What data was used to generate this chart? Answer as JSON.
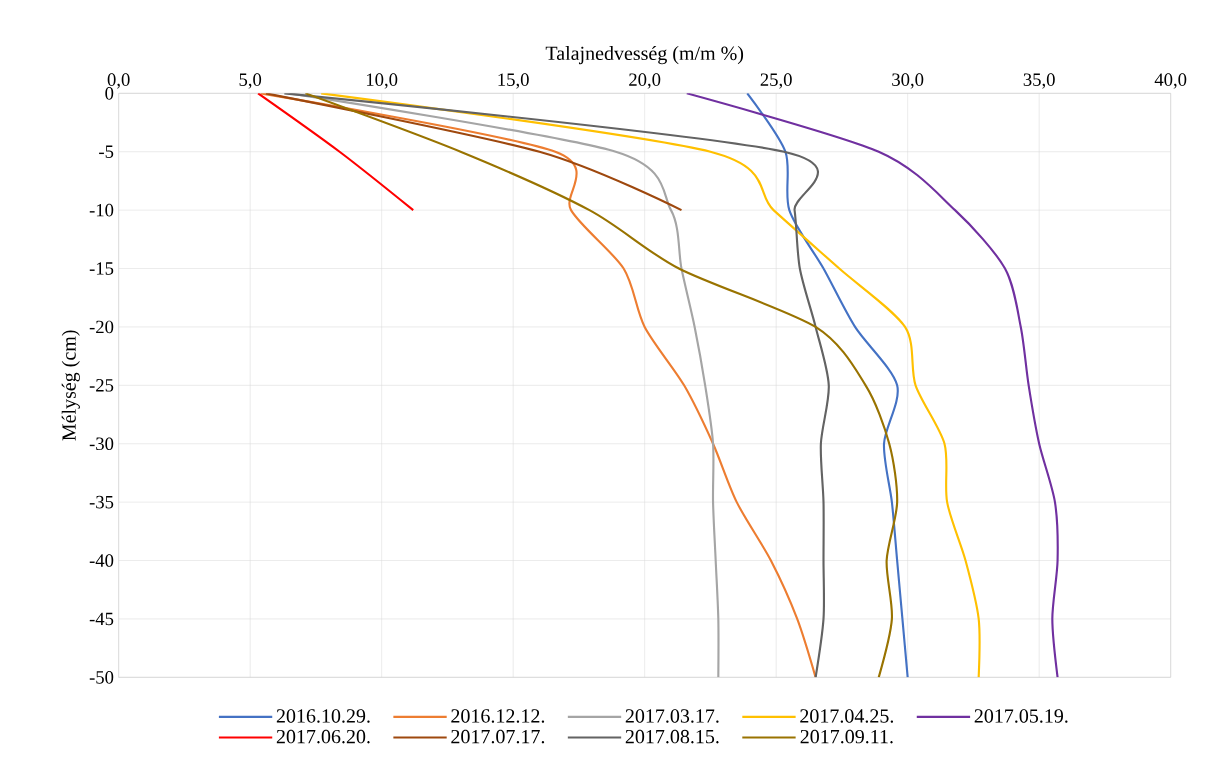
{
  "chart_data": {
    "type": "line",
    "xlabel": "Talajnedvesség (m/m %)",
    "ylabel": "Mélység (cm)",
    "xlim": [
      0,
      40
    ],
    "ylim": [
      -50,
      0
    ],
    "xticks": [
      {
        "value": 0,
        "label": "0,0"
      },
      {
        "value": 5,
        "label": "5,0"
      },
      {
        "value": 10,
        "label": "10,0"
      },
      {
        "value": 15,
        "label": "15,0"
      },
      {
        "value": 20,
        "label": "20,0"
      },
      {
        "value": 25,
        "label": "25,0"
      },
      {
        "value": 30,
        "label": "30,0"
      },
      {
        "value": 35,
        "label": "35,0"
      },
      {
        "value": 40,
        "label": "40,0"
      }
    ],
    "yticks": [
      -50,
      -45,
      -40,
      -35,
      -30,
      -25,
      -20,
      -15,
      -10,
      -5,
      0
    ],
    "grid": true,
    "legend": "bottom",
    "marker": "none",
    "line_style": "solid",
    "series": [
      {
        "name": "2016.10.29.",
        "color": "#4472c4",
        "x": [
          23.9,
          25.35,
          25.5,
          26.8,
          28.0,
          29.6,
          29.1,
          29.4,
          29.6,
          29.8,
          30.0
        ],
        "values": [
          0,
          -5,
          -10,
          -15,
          -20,
          -25,
          -30,
          -35,
          -40,
          -45,
          -50
        ]
      },
      {
        "name": "2016.12.12.",
        "color": "#ed7d31",
        "x": [
          5.4,
          16.6,
          17.2,
          19.2,
          20.0,
          21.5,
          22.6,
          23.5,
          24.8,
          25.8,
          26.5
        ],
        "values": [
          0,
          -5,
          -10,
          -15,
          -20,
          -25,
          -30,
          -35,
          -40,
          -45,
          -50
        ]
      },
      {
        "name": "2017.03.17.",
        "color": "#a5a5a5",
        "x": [
          6.5,
          18.9,
          21.0,
          21.4,
          21.9,
          22.3,
          22.6,
          22.6,
          22.7,
          22.8,
          22.8
        ],
        "values": [
          0,
          -5,
          -10,
          -15,
          -20,
          -25,
          -30,
          -35,
          -40,
          -45,
          -50
        ]
      },
      {
        "name": "2017.04.25.",
        "color": "#ffc000",
        "x": [
          7.7,
          22.5,
          24.9,
          27.4,
          29.9,
          30.3,
          31.4,
          31.5,
          32.2,
          32.7,
          32.7
        ],
        "values": [
          0,
          -5,
          -10,
          -15,
          -20,
          -25,
          -30,
          -35,
          -40,
          -45,
          -50
        ]
      },
      {
        "name": "2017.05.19.",
        "color": "#7030a0",
        "x": [
          21.6,
          28.9,
          31.8,
          33.7,
          34.3,
          34.6,
          35.0,
          35.6,
          35.7,
          35.5,
          35.7
        ],
        "values": [
          0,
          -5,
          -10,
          -15,
          -20,
          -25,
          -30,
          -35,
          -40,
          -45,
          -50
        ]
      },
      {
        "name": "2017.06.20.",
        "color": "#ff0000",
        "x": [
          5.3,
          8.4,
          11.2
        ],
        "values": [
          0,
          -5,
          -10
        ]
      },
      {
        "name": "2017.07.17.",
        "color": "#9e480e",
        "x": [
          5.6,
          16.0,
          21.4
        ],
        "values": [
          0,
          -5,
          -10
        ]
      },
      {
        "name": "2017.08.15.",
        "color": "#636363",
        "x": [
          6.3,
          25.3,
          25.7,
          25.9,
          26.5,
          27.0,
          26.7,
          26.8,
          26.8,
          26.8,
          26.5
        ],
        "values": [
          0,
          -5,
          -10,
          -15,
          -20,
          -25,
          -30,
          -35,
          -40,
          -45,
          -50
        ]
      },
      {
        "name": "2017.09.11.",
        "color": "#997300",
        "x": [
          7.1,
          13.0,
          17.9,
          21.3,
          26.5,
          28.4,
          29.3,
          29.6,
          29.2,
          29.4,
          28.9
        ],
        "values": [
          0,
          -5,
          -10,
          -15,
          -20,
          -25,
          -30,
          -35,
          -40,
          -45,
          -50
        ]
      }
    ]
  }
}
